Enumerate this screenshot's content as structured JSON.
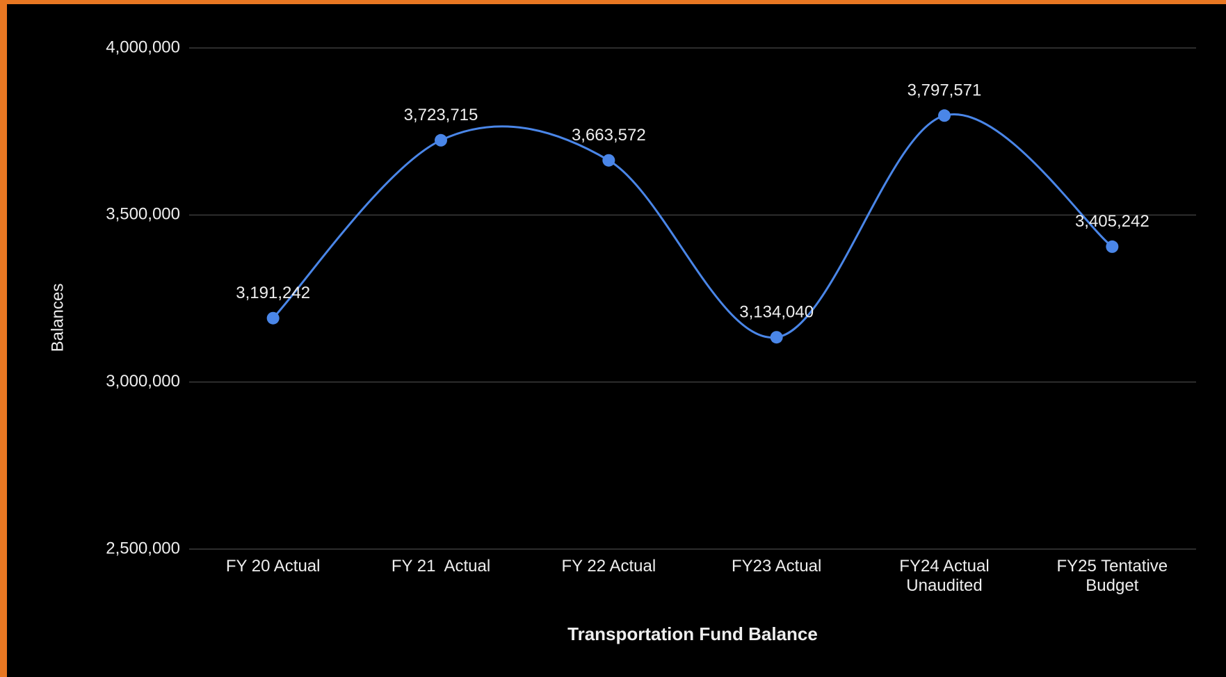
{
  "chart_data": {
    "type": "line",
    "title": "Transportation Fund Balance",
    "y_label": "Balances",
    "categories": [
      "FY 20 Actual",
      "FY 21  Actual",
      "FY 22 Actual",
      "FY23 Actual",
      "FY24 Actual\nUnaudited",
      "FY25 Tentative\nBudget"
    ],
    "series": [
      {
        "name": "Balances",
        "color": "#4a86e8",
        "values": [
          3191242,
          3723715,
          3663572,
          3134040,
          3797571,
          3405242
        ],
        "value_labels": [
          "3,191,242",
          "3,723,715",
          "3,663,572",
          "3,134,040",
          "3,797,571",
          "3,405,242"
        ]
      }
    ],
    "ylim": [
      2500000,
      4000000
    ],
    "yticks": [
      {
        "value": 2500000,
        "label": "2,500,000"
      },
      {
        "value": 3000000,
        "label": "3,000,000"
      },
      {
        "value": 3500000,
        "label": "3,500,000"
      },
      {
        "value": 4000000,
        "label": "4,000,000"
      }
    ],
    "grid": true,
    "smooth": true
  }
}
